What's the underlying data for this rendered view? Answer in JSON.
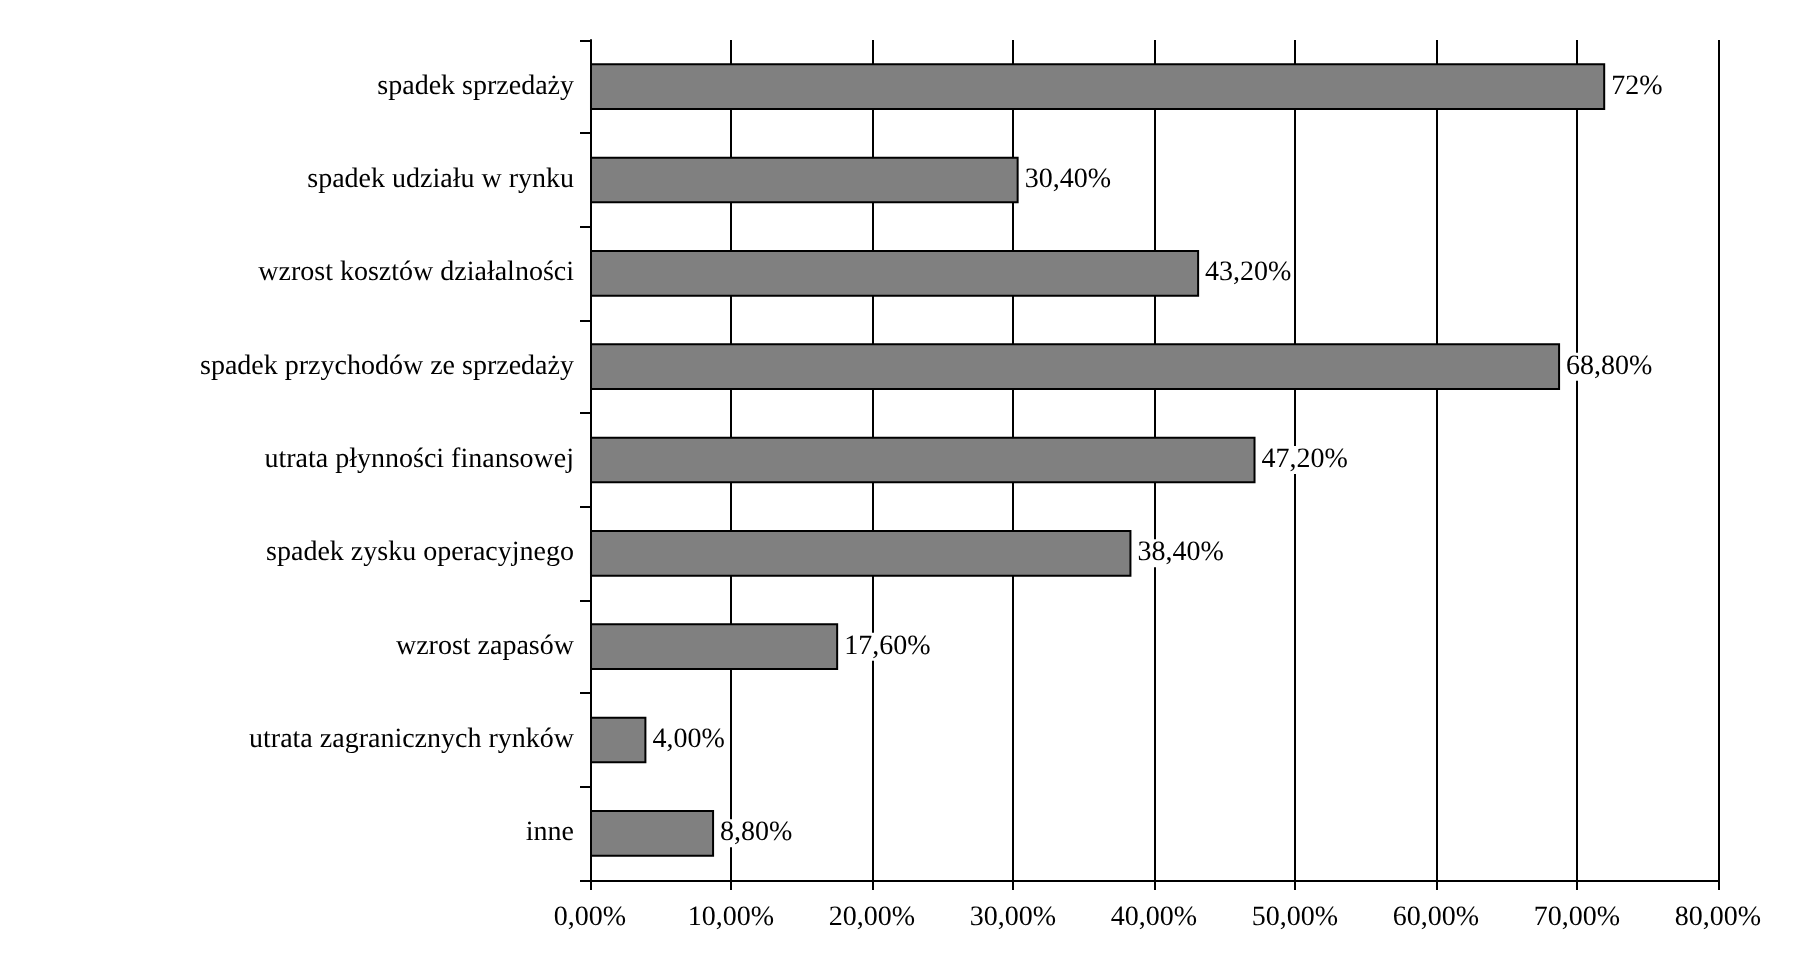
{
  "chart_data": {
    "type": "bar",
    "orientation": "horizontal",
    "categories": [
      "spadek sprzedaży",
      "spadek udziału w rynku",
      "wzrost kosztów działalności",
      "spadek przychodów ze sprzedaży",
      "utrata płynności finansowej",
      "spadek zysku operacyjnego",
      "wzrost zapasów",
      "utrata zagranicznych rynków",
      "inne"
    ],
    "values": [
      72,
      30.4,
      43.2,
      68.8,
      47.2,
      38.4,
      17.6,
      4,
      8.8
    ],
    "value_labels": [
      "72%",
      "30,40%",
      "43,20%",
      "68,80%",
      "47,20%",
      "38,40%",
      "17,60%",
      "4,00%",
      "8,80%"
    ],
    "color": "#808080",
    "xlim": [
      0,
      80
    ],
    "xticks": [
      {
        "value": 0,
        "label": "0,00%"
      },
      {
        "value": 10,
        "label": "10,00%"
      },
      {
        "value": 20,
        "label": "20,00%"
      },
      {
        "value": 30,
        "label": "30,00%"
      },
      {
        "value": 40,
        "label": "40,00%"
      },
      {
        "value": 50,
        "label": "50,00%"
      },
      {
        "value": 60,
        "label": "60,00%"
      },
      {
        "value": 70,
        "label": "70,00%"
      },
      {
        "value": 80,
        "label": "80,00%"
      }
    ],
    "grid": "x"
  }
}
